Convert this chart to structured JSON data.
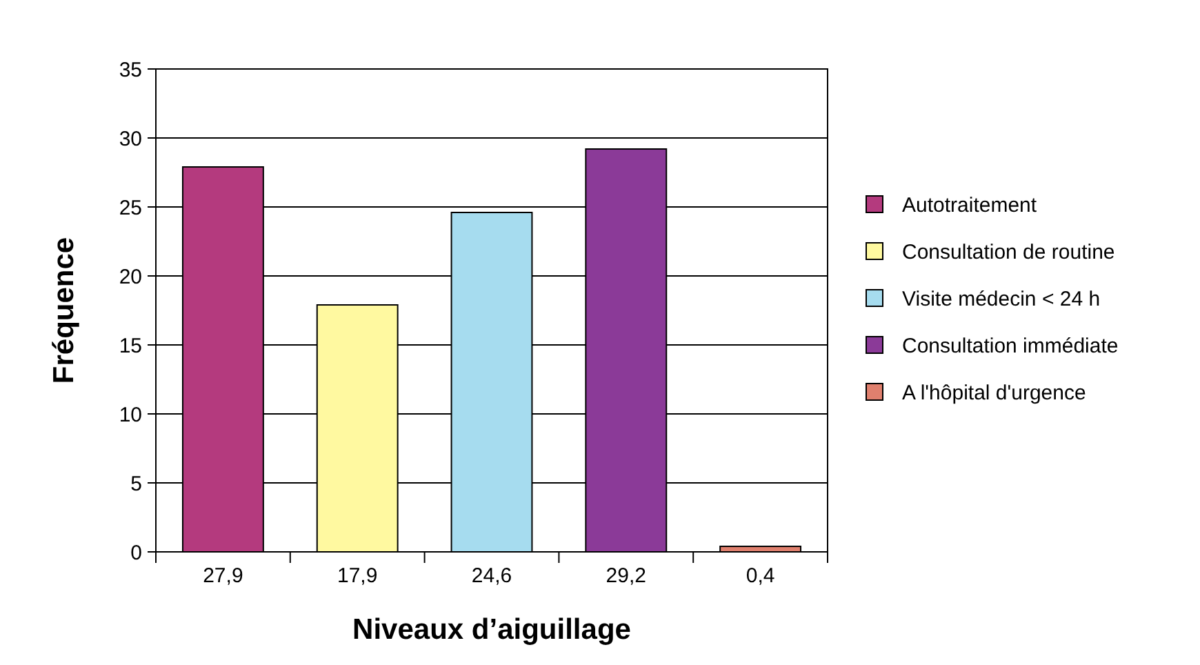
{
  "chart_data": {
    "type": "bar",
    "xlabel": "Niveaux d’aiguillage",
    "ylabel": "Fréquence",
    "categories": [
      null,
      null,
      null,
      null,
      null
    ],
    "series": [
      {
        "name": "Autotraitement",
        "color": "#b43a7e",
        "values": [
          27.9,
          null,
          null,
          null,
          null
        ],
        "value_labels": [
          "27,9",
          null,
          null,
          null,
          null
        ]
      },
      {
        "name": "Consultation de routine",
        "color": "#fff9a0",
        "values": [
          null,
          17.9,
          null,
          null,
          null
        ],
        "value_labels": [
          null,
          "17,9",
          null,
          null,
          null
        ]
      },
      {
        "name": "Visite médecin < 24 h",
        "color": "#a6dcef",
        "values": [
          null,
          null,
          24.6,
          null,
          null
        ],
        "value_labels": [
          null,
          null,
          "24,6",
          null,
          null
        ]
      },
      {
        "name": "Consultation immédiate",
        "color": "#8b3a98",
        "values": [
          null,
          null,
          null,
          29.2,
          null
        ],
        "value_labels": [
          null,
          null,
          null,
          "29,2",
          null
        ]
      },
      {
        "name": "A l'hôpital d'urgence",
        "color": "#e0806e",
        "values": [
          null,
          null,
          null,
          null,
          0.4
        ],
        "value_labels": [
          null,
          null,
          null,
          null,
          "0,4"
        ]
      }
    ],
    "ylim": [
      0,
      35
    ],
    "yticks": [
      0,
      5,
      10,
      15,
      20,
      25,
      30,
      35
    ],
    "grid": "y",
    "legend": "right"
  }
}
